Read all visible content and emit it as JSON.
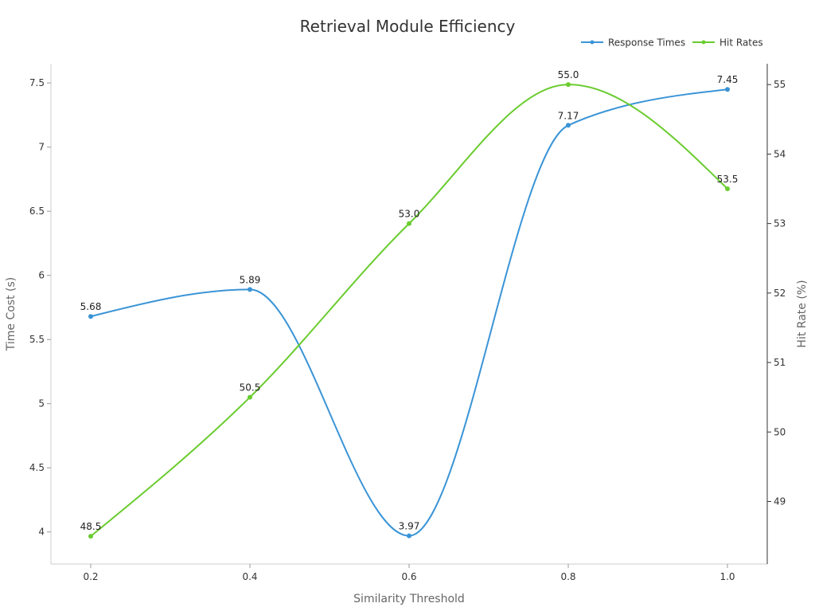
{
  "chart_data": {
    "type": "line",
    "title": "Retrieval Module Efficiency",
    "xlabel": "Similarity Threshold",
    "ylabel_left": "Time Cost (s)",
    "ylabel_right": "Hit Rate (%)",
    "x": [
      0.2,
      0.4,
      0.6,
      0.8,
      1.0
    ],
    "x_tick_labels": [
      "0.2",
      "0.4",
      "0.6",
      "0.8",
      "1.0"
    ],
    "xlim": [
      0.15,
      1.05
    ],
    "ylim_left": [
      3.75,
      7.65
    ],
    "ylim_right": [
      48.1,
      55.3
    ],
    "y_left_ticks": [
      4,
      4.5,
      5,
      5.5,
      6,
      6.5,
      7,
      7.5
    ],
    "y_left_tick_labels": [
      "4",
      "4.5",
      "5",
      "5.5",
      "6",
      "6.5",
      "7",
      "7.5"
    ],
    "y_right_ticks": [
      49,
      50,
      51,
      52,
      53,
      54,
      55
    ],
    "y_right_tick_labels": [
      "49",
      "50",
      "51",
      "52",
      "53",
      "54",
      "55"
    ],
    "grid": false,
    "legend_position": "top-right",
    "series": [
      {
        "name": "Response Times",
        "axis": "left",
        "color": "#3a94d6",
        "smooth": true,
        "values": [
          5.68,
          5.89,
          3.97,
          7.17,
          7.45
        ],
        "labels": [
          "5.68",
          "5.89",
          "3.97",
          "7.17",
          "7.45"
        ]
      },
      {
        "name": "Hit Rates",
        "axis": "right",
        "color": "#6acc2f",
        "smooth": true,
        "values": [
          48.5,
          50.5,
          53.0,
          55.0,
          53.5
        ],
        "labels": [
          "48.5",
          "50.5",
          "53.0",
          "55.0",
          "53.5"
        ]
      }
    ]
  }
}
